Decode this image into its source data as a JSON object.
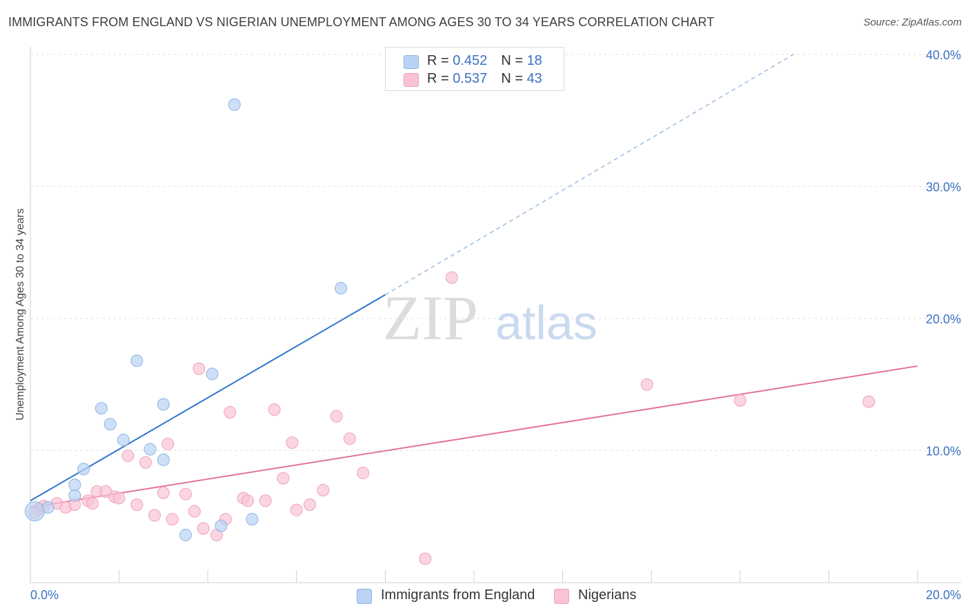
{
  "title": "IMMIGRANTS FROM ENGLAND VS NIGERIAN UNEMPLOYMENT AMONG AGES 30 TO 34 YEARS CORRELATION CHART",
  "source": "Source: ZipAtlas.com",
  "watermark": {
    "zip": "ZIP",
    "atlas": "atlas"
  },
  "legend": {
    "england": {
      "r_label": "R = ",
      "r_value": "0.452",
      "n_label": "N = ",
      "n_value": "18"
    },
    "nigerians": {
      "r_label": "R = ",
      "r_value": "0.537",
      "n_label": "N = ",
      "n_value": "43"
    }
  },
  "colors": {
    "england_fill": "#b9d3f4",
    "england_stroke": "#8fb3e2",
    "england_line": "#2f75cc",
    "nigerians_fill": "#f9c3d3",
    "nigerians_stroke": "#eea3ba",
    "nigerians_line": "#e3729a",
    "axis_text": "#3a72c4"
  },
  "chart_data": {
    "type": "scatter",
    "xlabel": "",
    "ylabel": "Unemployment Among Ages 30 to 34 years",
    "xlim": [
      0,
      20
    ],
    "ylim": [
      0,
      40
    ],
    "x_tick_labels": [
      "0.0%",
      "20.0%"
    ],
    "y_tick_labels": [
      "10.0%",
      "20.0%",
      "30.0%",
      "40.0%"
    ],
    "y_ticks": [
      10,
      20,
      30,
      40
    ],
    "series": [
      {
        "name": "Immigrants from England",
        "key": "england",
        "points": [
          [
            0.1,
            5.4
          ],
          [
            0.4,
            5.7
          ],
          [
            1.0,
            6.6
          ],
          [
            1.0,
            7.4
          ],
          [
            1.2,
            8.6
          ],
          [
            1.6,
            13.2
          ],
          [
            1.8,
            12.0
          ],
          [
            2.1,
            10.8
          ],
          [
            2.4,
            16.8
          ],
          [
            2.7,
            10.1
          ],
          [
            3.0,
            9.3
          ],
          [
            3.0,
            13.5
          ],
          [
            3.5,
            3.6
          ],
          [
            4.1,
            15.8
          ],
          [
            4.3,
            4.3
          ],
          [
            4.6,
            36.2
          ],
          [
            5.0,
            4.8
          ],
          [
            7.0,
            22.3
          ]
        ],
        "trend_solid": [
          [
            0,
            6.2
          ],
          [
            8,
            21.8
          ]
        ],
        "trend_dashed": [
          [
            8,
            21.8
          ],
          [
            17.2,
            40.0
          ]
        ]
      },
      {
        "name": "Nigerians",
        "key": "nigerians",
        "points": [
          [
            0.2,
            5.6
          ],
          [
            0.6,
            6.0
          ],
          [
            0.8,
            5.7
          ],
          [
            1.0,
            5.9
          ],
          [
            1.3,
            6.2
          ],
          [
            1.4,
            6.0
          ],
          [
            1.5,
            6.9
          ],
          [
            1.7,
            6.9
          ],
          [
            1.9,
            6.5
          ],
          [
            2.0,
            6.4
          ],
          [
            2.2,
            9.6
          ],
          [
            2.4,
            5.9
          ],
          [
            2.6,
            9.1
          ],
          [
            2.8,
            5.1
          ],
          [
            3.0,
            6.8
          ],
          [
            3.1,
            10.5
          ],
          [
            3.2,
            4.8
          ],
          [
            3.5,
            6.7
          ],
          [
            3.7,
            5.4
          ],
          [
            3.8,
            16.2
          ],
          [
            3.9,
            4.1
          ],
          [
            4.2,
            3.6
          ],
          [
            4.4,
            4.8
          ],
          [
            4.5,
            12.9
          ],
          [
            4.8,
            6.4
          ],
          [
            4.9,
            6.2
          ],
          [
            5.3,
            6.2
          ],
          [
            5.5,
            13.1
          ],
          [
            5.7,
            7.9
          ],
          [
            5.9,
            10.6
          ],
          [
            6.0,
            5.5
          ],
          [
            6.3,
            5.9
          ],
          [
            6.6,
            7.0
          ],
          [
            6.9,
            12.6
          ],
          [
            7.2,
            10.9
          ],
          [
            7.5,
            8.3
          ],
          [
            8.9,
            1.8
          ],
          [
            9.5,
            23.1
          ],
          [
            13.9,
            15.0
          ],
          [
            16.0,
            13.8
          ],
          [
            18.9,
            13.7
          ],
          [
            0.1,
            5.3
          ],
          [
            0.3,
            5.8
          ]
        ],
        "trend_solid": [
          [
            0,
            5.7
          ],
          [
            20,
            16.4
          ]
        ]
      }
    ]
  },
  "bottom_legend": {
    "england": "Immigrants from England",
    "nigerians": "Nigerians"
  }
}
